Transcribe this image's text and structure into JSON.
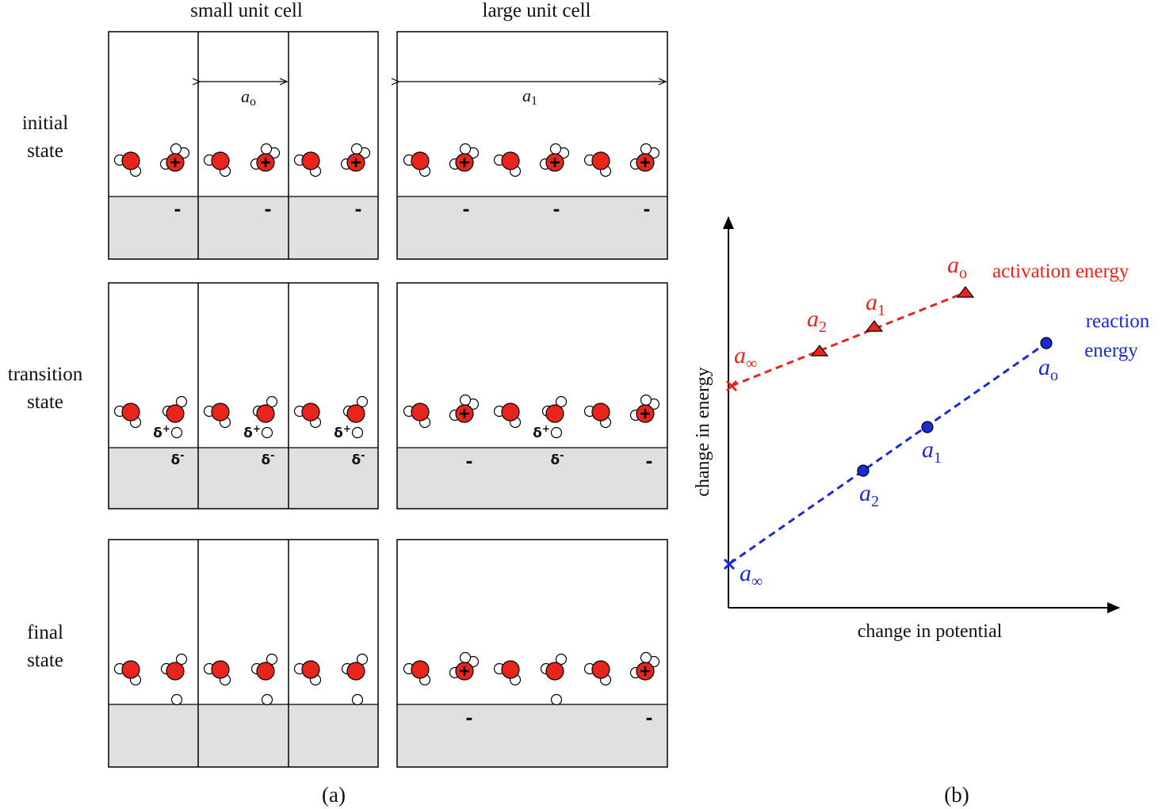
{
  "panel_a": {
    "col_small": "small unit cell",
    "col_large": "large unit cell",
    "row_labels": [
      {
        "line1": "initial",
        "line2": "state"
      },
      {
        "line1": "transition",
        "line2": "state"
      },
      {
        "line1": "final",
        "line2": "state"
      }
    ],
    "a0_label": "a",
    "a0_sub": "o",
    "a1_label": "a",
    "a1_sub": "1",
    "minus": "-",
    "delta_plus": "δ",
    "delta_plus_sup": "+",
    "delta_minus": "δ",
    "delta_minus_sup": "-",
    "caption": "(a)"
  },
  "panel_b": {
    "xlabel": "change in potential",
    "ylabel": "change in energy",
    "activation_label": "activation energy",
    "reaction_label_1": "reaction",
    "reaction_label_2": "energy",
    "caption": "(b)",
    "colors": {
      "activation": "#e8251c",
      "reaction": "#1a2ad8"
    },
    "activation_points": [
      {
        "label": "a",
        "sub": "∞"
      },
      {
        "label": "a",
        "sub": "2"
      },
      {
        "label": "a",
        "sub": "1"
      },
      {
        "label": "a",
        "sub": "o"
      }
    ],
    "reaction_points": [
      {
        "label": "a",
        "sub": "∞"
      },
      {
        "label": "a",
        "sub": "2"
      },
      {
        "label": "a",
        "sub": "1"
      },
      {
        "label": "a",
        "sub": "o"
      }
    ]
  },
  "colors": {
    "oxygen": "#e8251c",
    "surface": "#e0e0e0"
  }
}
